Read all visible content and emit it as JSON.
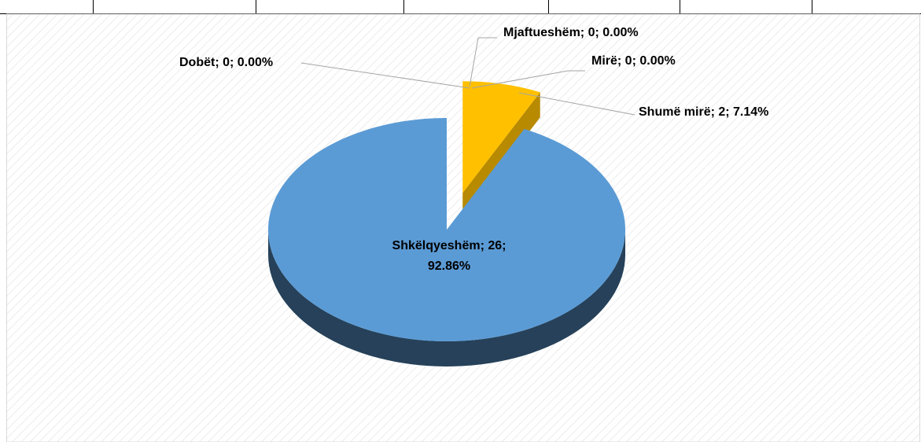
{
  "chart_data": {
    "type": "pie",
    "categories": [
      "Dobët",
      "Mjaftueshëm",
      "Mirë",
      "Shumë mirë",
      "Shkëlqyeshëm"
    ],
    "values": [
      0,
      0,
      0,
      2,
      26
    ],
    "value_labels": [
      "Dobët; 0; 0.00%",
      "Mjaftueshëm; 0; 0.00%",
      "Mirë; 0; 0.00%",
      "Shumë mirë; 2; 7.14%",
      "Shkëlqyeshëm; 26; 92.86%"
    ],
    "colors": [
      "#a5a5a5",
      "#ed7d31",
      "#4472c4",
      "#ffc000",
      "#5b9bd5"
    ]
  }
}
